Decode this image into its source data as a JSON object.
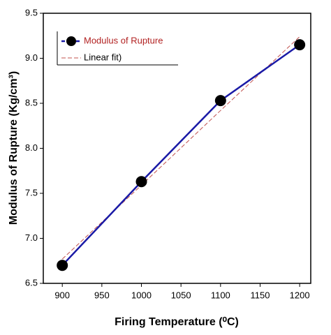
{
  "chart_data": {
    "type": "line",
    "x": [
      900,
      1000,
      1100,
      1200
    ],
    "series": [
      {
        "name": "Modulus of Rupture",
        "color": "#1a1aa6",
        "marker": "circle",
        "marker_color": "#000000",
        "legend_text_color": "#b22222",
        "values": [
          6.7,
          7.63,
          8.53,
          9.15
        ]
      },
      {
        "name": "Linear fit)",
        "color": "#c0504d",
        "dashed": true,
        "marker": "none",
        "legend_text_color": "#000000",
        "values": [
          6.77,
          7.59,
          8.42,
          9.24
        ]
      }
    ],
    "xlabel": "Firing Temperature (⁰C)",
    "ylabel": "Modulus of Rupture (Kg/cm³)",
    "xlim": [
      876,
      1214
    ],
    "xticks": [
      900,
      950,
      1000,
      1050,
      1100,
      1150,
      1200
    ],
    "ylim": [
      6.5,
      9.5
    ],
    "yticks": [
      6.5,
      {
        "value": 7,
        "label": "7.0"
      },
      7.5,
      {
        "value": 8,
        "label": "8.0"
      },
      8.5,
      {
        "value": 9,
        "label": "9.0"
      },
      9.5
    ],
    "legend": "upper left",
    "grid": false
  }
}
